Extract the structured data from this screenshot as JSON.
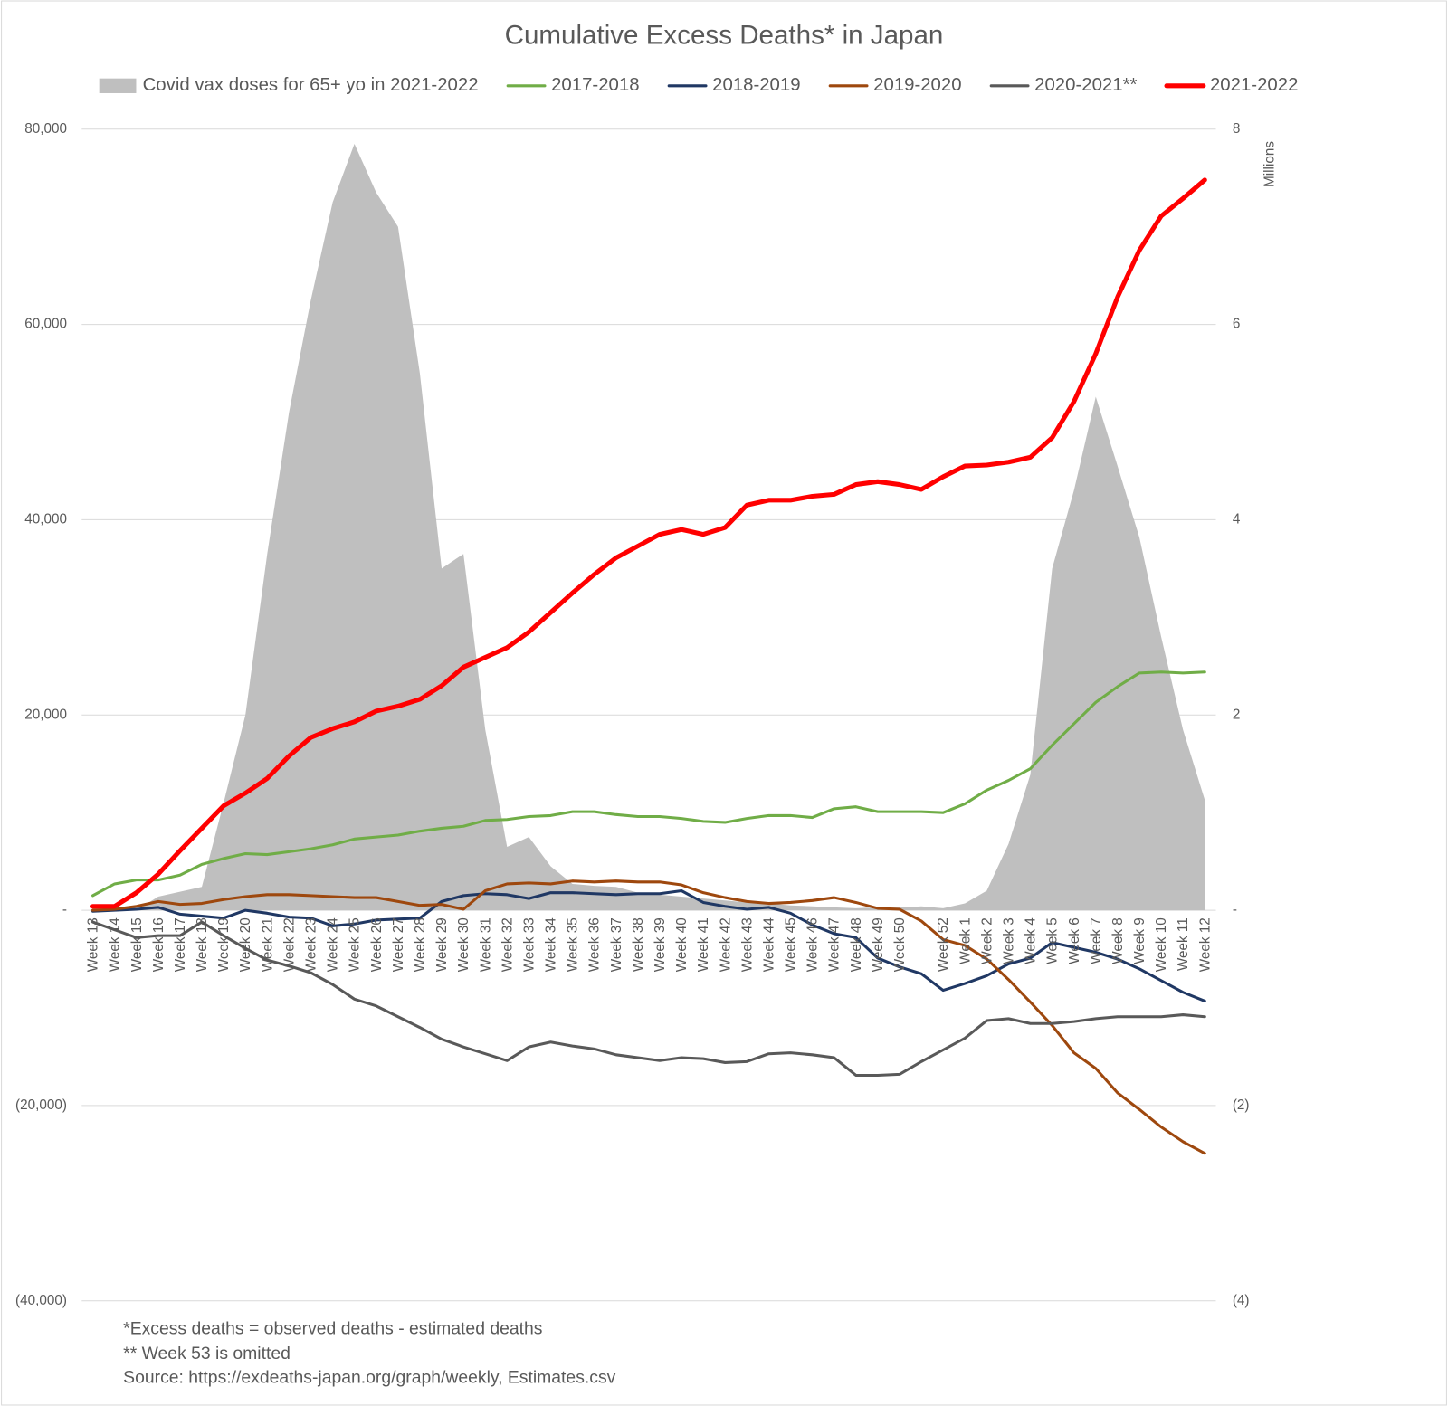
{
  "chart_data": {
    "type": "line",
    "title": "Cumulative Excess Deaths* in Japan",
    "y2_label": "Millions",
    "notes": [
      "*Excess deaths = observed deaths - estimated deaths",
      "** Week 53 is omitted",
      "Source: https://exdeaths-japan.org/graph/weekly, Estimates.csv"
    ],
    "categories": [
      "Week 13",
      "Week 14",
      "Week 15",
      "Week 16",
      "Week 17",
      "Week 18",
      "Week 19",
      "Week 20",
      "Week 21",
      "Week 22",
      "Week 23",
      "Week 24",
      "Week 25",
      "Week 26",
      "Week 27",
      "Week 28",
      "Week 29",
      "Week 30",
      "Week 31",
      "Week 32",
      "Week 33",
      "Week 34",
      "Week 35",
      "Week 36",
      "Week 37",
      "Week 38",
      "Week 39",
      "Week 40",
      "Week 41",
      "Week 42",
      "Week 43",
      "Week 44",
      "Week 45",
      "Week 46",
      "Week 47",
      "Week 48",
      "Week 49",
      "Week 50",
      null,
      "Week 52",
      "Week 1",
      "Week 2",
      "Week 3",
      "Week 4",
      "Week 5",
      "Week 6",
      "Week 7",
      "Week 8",
      "Week 9",
      "Week 10",
      "Week 11",
      "Week 12"
    ],
    "ylim": [
      -40000,
      80000
    ],
    "yticks": [
      {
        "value": 80000,
        "label": "80,000"
      },
      {
        "value": 60000,
        "label": "60,000"
      },
      {
        "value": 40000,
        "label": "40,000"
      },
      {
        "value": 20000,
        "label": "20,000"
      },
      {
        "value": 0,
        "label": "-"
      },
      {
        "value": -20000,
        "label": "(20,000)"
      },
      {
        "value": -40000,
        "label": "(40,000)"
      }
    ],
    "y2lim": [
      -4,
      8
    ],
    "y2ticks": [
      8,
      6,
      4,
      2,
      {
        "value": 0,
        "label": "-"
      },
      {
        "value": -2,
        "label": "(2)"
      },
      {
        "value": -4,
        "label": "(4)"
      }
    ],
    "grid": true,
    "legend": "top",
    "series": [
      {
        "name": "Covid vax doses for 65+ yo in 2021-2022",
        "type": "area",
        "axis": "y2",
        "color": "#bfbfbf",
        "values": [
          0,
          0,
          0,
          0.14,
          0.19,
          0.24,
          1.1,
          2.0,
          3.65,
          5.1,
          6.25,
          7.25,
          7.85,
          7.35,
          7.0,
          5.5,
          3.5,
          3.65,
          1.85,
          0.65,
          0.75,
          0.45,
          0.27,
          0.25,
          0.24,
          0.18,
          0.16,
          0.14,
          0.12,
          0.1,
          0.08,
          0.07,
          0.05,
          0.04,
          0.03,
          0.02,
          0.03,
          0.03,
          0.04,
          0.02,
          0.07,
          0.2,
          0.68,
          1.39,
          3.5,
          4.3,
          5.26,
          4.55,
          3.82,
          2.8,
          1.85,
          1.13
        ]
      },
      {
        "name": "2017-2018",
        "type": "line",
        "color": "#70ad47",
        "values": [
          1500,
          2700,
          3100,
          3100,
          3600,
          4700,
          5300,
          5800,
          5700,
          6000,
          6300,
          6700,
          7300,
          7500,
          7700,
          8100,
          8400,
          8600,
          9200,
          9300,
          9600,
          9700,
          10100,
          10100,
          9800,
          9600,
          9600,
          9400,
          9100,
          9000,
          9400,
          9700,
          9700,
          9500,
          10400,
          10600,
          10100,
          10100,
          10100,
          10000,
          10900,
          12300,
          13300,
          14500,
          16900,
          19100,
          21300,
          22900,
          24300,
          24400,
          24300,
          24400
        ]
      },
      {
        "name": "2018-2019",
        "type": "line",
        "color": "#203864",
        "values": [
          -100,
          0,
          100,
          300,
          -400,
          -600,
          -800,
          0,
          -300,
          -700,
          -800,
          -1600,
          -1400,
          -1000,
          -900,
          -800,
          900,
          1500,
          1700,
          1600,
          1200,
          1800,
          1800,
          1700,
          1600,
          1700,
          1700,
          2000,
          800,
          400,
          100,
          300,
          -300,
          -1500,
          -2400,
          -2800,
          -4900,
          -5800,
          -6500,
          -8200,
          -7500,
          -6700,
          -5500,
          -4900,
          -3300,
          -3800,
          -4300,
          -5000,
          -6000,
          -7200,
          -8400,
          -9300
        ]
      },
      {
        "name": "2019-2020",
        "type": "line",
        "color": "#9e480e",
        "values": [
          0,
          100,
          400,
          900,
          600,
          700,
          1100,
          1400,
          1600,
          1600,
          1500,
          1400,
          1300,
          1300,
          900,
          500,
          600,
          100,
          2000,
          2700,
          2800,
          2700,
          3000,
          2900,
          3000,
          2900,
          2900,
          2600,
          1800,
          1300,
          900,
          700,
          800,
          1000,
          1300,
          800,
          200,
          100,
          -1100,
          -3000,
          -3600,
          -5000,
          -7100,
          -9400,
          -11800,
          -14600,
          -16200,
          -18700,
          -20400,
          -22200,
          -23700,
          -24900
        ]
      },
      {
        "name": "2020-2021**",
        "type": "line",
        "color": "#595959",
        "values": [
          -1200,
          -2000,
          -2800,
          -2600,
          -2600,
          -1200,
          -2600,
          -3900,
          -5100,
          -5700,
          -6400,
          -7600,
          -9100,
          -9800,
          -10900,
          -12000,
          -13200,
          -14000,
          -14700,
          -15400,
          -14000,
          -13500,
          -13900,
          -14200,
          -14800,
          -15100,
          -15400,
          -15100,
          -15200,
          -15600,
          -15500,
          -14700,
          -14600,
          -14800,
          -15100,
          -16900,
          -16900,
          -16800,
          -15500,
          -14300,
          -13100,
          -11300,
          -11100,
          -11600,
          -11600,
          -11400,
          -11100,
          -10900,
          -10900,
          -10900,
          -10700,
          -10900
        ]
      },
      {
        "name": "2021-2022",
        "type": "line",
        "color": "#ff0000",
        "width": 5,
        "values": [
          400,
          400,
          1800,
          3700,
          6100,
          8400,
          10700,
          12000,
          13500,
          15800,
          17700,
          18600,
          19300,
          20400,
          20900,
          21600,
          23000,
          24900,
          25900,
          26900,
          28500,
          30500,
          32500,
          34400,
          36100,
          37300,
          38500,
          39000,
          38500,
          39200,
          41500,
          42000,
          42000,
          42400,
          42600,
          43600,
          43900,
          43600,
          43100,
          44400,
          45500,
          45600,
          45900,
          46400,
          48400,
          52100,
          57000,
          62800,
          67600,
          71100,
          72900,
          74800
        ]
      }
    ]
  }
}
